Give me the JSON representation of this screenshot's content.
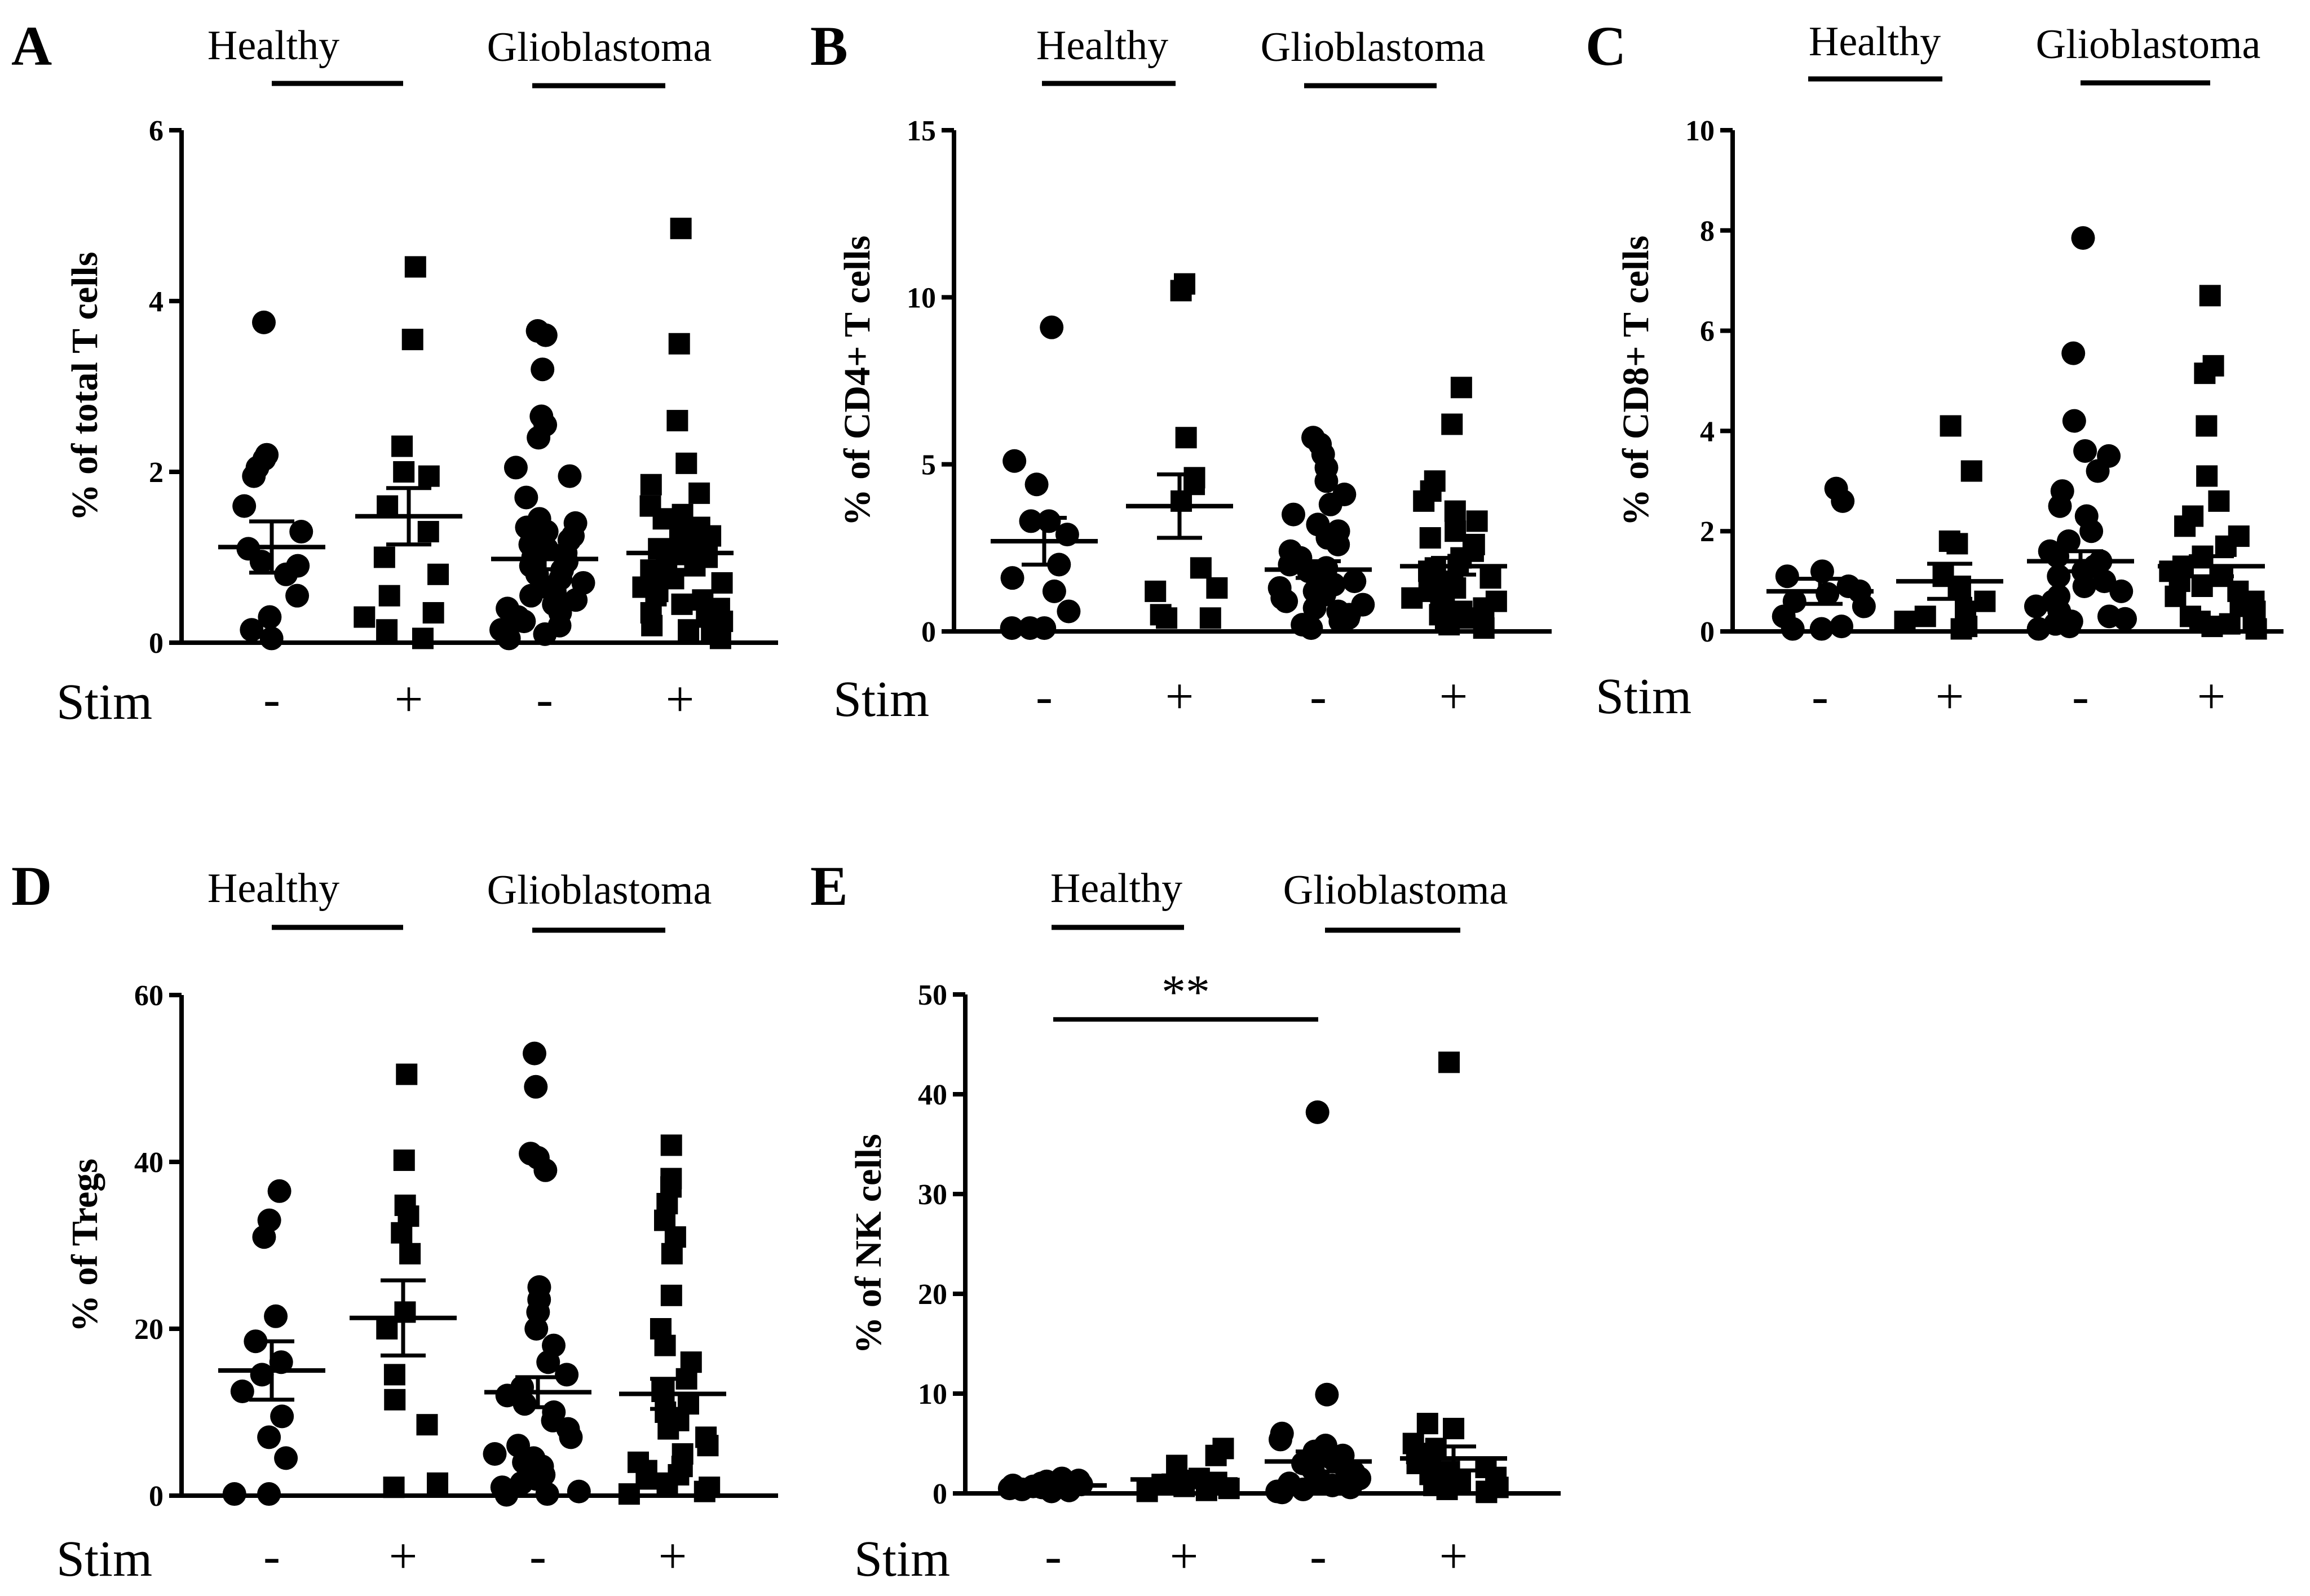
{
  "figure": {
    "stim_label": "Stim",
    "group_labels": [
      "Healthy",
      "Glioblastoma"
    ]
  },
  "chart_data": [
    {
      "panel": "A",
      "type": "scatter",
      "ylabel": "% of total T cells",
      "ylim": [
        0,
        6
      ],
      "yticks": [
        0,
        2,
        4,
        6
      ],
      "groups": [
        "Healthy",
        "Glioblastoma"
      ],
      "categories": [
        "-",
        "+",
        "-",
        "+"
      ],
      "significance": [],
      "series": [
        {
          "group": "Healthy",
          "stim": "-",
          "marker": "circle",
          "mean": 1.12,
          "sem": 0.3,
          "values": [
            3.75,
            2.2,
            2.15,
            2.05,
            1.95,
            1.6,
            1.3,
            1.1,
            0.95,
            0.9,
            0.8,
            0.55,
            0.3,
            0.15,
            0.05
          ]
        },
        {
          "group": "Healthy",
          "stim": "+",
          "marker": "square",
          "mean": 1.48,
          "sem": 0.33,
          "values": [
            4.4,
            3.55,
            2.3,
            2.0,
            1.95,
            1.6,
            1.3,
            1.0,
            0.8,
            0.55,
            0.35,
            0.3,
            0.15,
            0.05
          ]
        },
        {
          "group": "Glioblastoma",
          "stim": "-",
          "marker": "circle",
          "mean": 0.98,
          "sem": 0.12,
          "values": [
            3.65,
            3.6,
            3.2,
            2.65,
            2.55,
            2.4,
            2.05,
            1.95,
            1.7,
            1.45,
            1.4,
            1.35,
            1.3,
            1.25,
            1.2,
            1.15,
            1.1,
            1.05,
            1.0,
            0.95,
            0.9,
            0.85,
            0.8,
            0.75,
            0.7,
            0.65,
            0.6,
            0.55,
            0.5,
            0.45,
            0.4,
            0.35,
            0.3,
            0.25,
            0.2,
            0.15,
            0.1,
            0.05
          ]
        },
        {
          "group": "Glioblastoma",
          "stim": "+",
          "marker": "square",
          "mean": 1.05,
          "sem": 0.12,
          "values": [
            4.85,
            3.5,
            2.6,
            2.1,
            1.85,
            1.75,
            1.6,
            1.5,
            1.45,
            1.4,
            1.35,
            1.3,
            1.25,
            1.2,
            1.15,
            1.1,
            1.05,
            1.0,
            0.95,
            0.9,
            0.85,
            0.8,
            0.75,
            0.7,
            0.65,
            0.6,
            0.55,
            0.5,
            0.45,
            0.4,
            0.35,
            0.3,
            0.25,
            0.2,
            0.15,
            0.1,
            0.05
          ]
        }
      ]
    },
    {
      "panel": "B",
      "type": "scatter",
      "ylabel": "% of CD4+ T cells",
      "ylim": [
        0,
        15
      ],
      "yticks": [
        0,
        5,
        10,
        15
      ],
      "groups": [
        "Healthy",
        "Glioblastoma"
      ],
      "categories": [
        "-",
        "+",
        "-",
        "+"
      ],
      "significance": [],
      "series": [
        {
          "group": "Healthy",
          "stim": "-",
          "marker": "circle",
          "mean": 2.7,
          "sem": 0.7,
          "values": [
            9.1,
            5.1,
            4.4,
            3.3,
            3.3,
            2.9,
            2.0,
            1.6,
            1.2,
            0.6,
            0.1,
            0.1,
            0.1
          ]
        },
        {
          "group": "Healthy",
          "stim": "+",
          "marker": "square",
          "mean": 3.75,
          "sem": 0.95,
          "values": [
            10.4,
            10.2,
            5.8,
            4.6,
            4.4,
            3.9,
            1.9,
            1.3,
            1.2,
            0.5,
            0.4,
            0.4
          ]
        },
        {
          "group": "Glioblastoma",
          "stim": "-",
          "marker": "circle",
          "mean": 1.85,
          "sem": 0.25,
          "values": [
            5.8,
            5.6,
            5.3,
            4.9,
            4.5,
            4.1,
            3.8,
            3.5,
            3.2,
            3.0,
            2.8,
            2.6,
            2.4,
            2.2,
            2.0,
            1.9,
            1.8,
            1.7,
            1.6,
            1.5,
            1.4,
            1.3,
            1.2,
            1.1,
            1.0,
            0.9,
            0.8,
            0.7,
            0.6,
            0.5,
            0.4,
            0.3,
            0.2,
            0.1
          ]
        },
        {
          "group": "Glioblastoma",
          "stim": "+",
          "marker": "square",
          "mean": 1.95,
          "sem": 0.25,
          "values": [
            7.3,
            6.2,
            4.5,
            4.2,
            3.9,
            3.6,
            3.3,
            3.0,
            2.8,
            2.6,
            2.4,
            2.2,
            2.0,
            1.9,
            1.8,
            1.7,
            1.6,
            1.5,
            1.4,
            1.3,
            1.2,
            1.1,
            1.0,
            0.9,
            0.8,
            0.7,
            0.6,
            0.5,
            0.4,
            0.3,
            0.2,
            0.1
          ]
        }
      ]
    },
    {
      "panel": "C",
      "type": "scatter",
      "ylabel": "% of CD8+ T cells",
      "ylim": [
        0,
        10
      ],
      "yticks": [
        0,
        2,
        4,
        6,
        8,
        10
      ],
      "groups": [
        "Healthy",
        "Glioblastoma"
      ],
      "categories": [
        "-",
        "+",
        "-",
        "+"
      ],
      "significance": [],
      "series": [
        {
          "group": "Healthy",
          "stim": "-",
          "marker": "circle",
          "mean": 0.8,
          "sem": 0.25,
          "values": [
            2.85,
            2.6,
            1.2,
            1.1,
            0.9,
            0.8,
            0.75,
            0.6,
            0.5,
            0.3,
            0.1,
            0.05,
            0.05
          ]
        },
        {
          "group": "Healthy",
          "stim": "+",
          "marker": "square",
          "mean": 1.0,
          "sem": 0.35,
          "values": [
            4.1,
            3.2,
            1.8,
            1.75,
            1.1,
            0.9,
            0.6,
            0.4,
            0.3,
            0.2,
            0.1,
            0.05
          ]
        },
        {
          "group": "Glioblastoma",
          "stim": "-",
          "marker": "circle",
          "mean": 1.4,
          "sem": 0.2,
          "values": [
            7.85,
            5.55,
            4.2,
            3.6,
            3.5,
            3.2,
            2.8,
            2.5,
            2.3,
            2.0,
            1.8,
            1.6,
            1.5,
            1.4,
            1.3,
            1.2,
            1.1,
            1.0,
            0.9,
            0.8,
            0.7,
            0.6,
            0.5,
            0.4,
            0.3,
            0.25,
            0.2,
            0.15,
            0.1,
            0.05
          ]
        },
        {
          "group": "Glioblastoma",
          "stim": "+",
          "marker": "square",
          "mean": 1.3,
          "sem": 0.2,
          "values": [
            6.7,
            5.3,
            5.15,
            4.1,
            3.1,
            2.6,
            2.3,
            2.1,
            1.9,
            1.7,
            1.5,
            1.3,
            1.2,
            1.1,
            1.0,
            0.9,
            0.8,
            0.7,
            0.6,
            0.5,
            0.4,
            0.3,
            0.25,
            0.2,
            0.15,
            0.1,
            0.05
          ]
        }
      ]
    },
    {
      "panel": "D",
      "type": "scatter",
      "ylabel": "% of Tregs",
      "ylim": [
        0,
        60
      ],
      "yticks": [
        0,
        20,
        40,
        60
      ],
      "groups": [
        "Healthy",
        "Glioblastoma"
      ],
      "categories": [
        "-",
        "+",
        "-",
        "+"
      ],
      "significance": [],
      "series": [
        {
          "group": "Healthy",
          "stim": "-",
          "marker": "circle",
          "mean": 15.0,
          "sem": 3.5,
          "values": [
            36.5,
            33.0,
            31.0,
            21.5,
            18.5,
            16.0,
            14.5,
            12.5,
            9.5,
            7.0,
            4.5,
            0.2,
            0.2
          ]
        },
        {
          "group": "Healthy",
          "stim": "+",
          "marker": "square",
          "mean": 21.3,
          "sem": 4.5,
          "values": [
            50.5,
            40.2,
            34.8,
            33.5,
            31.5,
            29.0,
            22.0,
            20.0,
            14.5,
            11.5,
            8.5,
            1.5,
            1.0
          ]
        },
        {
          "group": "Glioblastoma",
          "stim": "-",
          "marker": "circle",
          "mean": 12.4,
          "sem": 1.8,
          "values": [
            53.0,
            49.0,
            41.0,
            40.5,
            39.0,
            25.0,
            23.5,
            22.0,
            20.0,
            18.0,
            16.0,
            14.5,
            13.0,
            12.0,
            11.0,
            10.0,
            9.0,
            8.0,
            7.0,
            6.0,
            5.0,
            4.5,
            4.0,
            3.5,
            3.0,
            2.5,
            2.0,
            1.5,
            1.0,
            0.5,
            0.2,
            0.1
          ]
        },
        {
          "group": "Glioblastoma",
          "stim": "+",
          "marker": "square",
          "mean": 12.2,
          "sem": 1.8,
          "values": [
            42.0,
            38.0,
            37.0,
            35.0,
            33.0,
            31.0,
            29.0,
            24.0,
            20.0,
            18.0,
            16.0,
            14.0,
            12.5,
            11.0,
            10.0,
            9.0,
            8.0,
            7.0,
            6.0,
            5.0,
            4.0,
            3.5,
            3.0,
            2.5,
            2.0,
            1.5,
            1.0,
            0.5,
            0.2
          ]
        }
      ]
    },
    {
      "panel": "E",
      "type": "scatter",
      "ylabel": "% of NK cells",
      "ylim": [
        0,
        50
      ],
      "yticks": [
        0,
        10,
        20,
        30,
        40,
        50
      ],
      "groups": [
        "Healthy",
        "Glioblastoma"
      ],
      "categories": [
        "-",
        "+",
        "-",
        "+"
      ],
      "significance": [
        {
          "from": 0,
          "to": 2,
          "label": "**"
        }
      ],
      "series": [
        {
          "group": "Healthy",
          "stim": "-",
          "marker": "circle",
          "mean": 0.8,
          "sem": 0.1,
          "values": [
            1.5,
            1.3,
            1.2,
            1.0,
            0.9,
            0.8,
            0.7,
            0.6,
            0.5,
            0.4,
            0.3,
            0.2
          ]
        },
        {
          "group": "Healthy",
          "stim": "+",
          "marker": "square",
          "mean": 1.4,
          "sem": 0.4,
          "values": [
            4.5,
            3.8,
            2.8,
            1.5,
            1.3,
            1.1,
            0.9,
            0.7,
            0.5,
            0.3,
            0.2
          ]
        },
        {
          "group": "Glioblastoma",
          "stim": "-",
          "marker": "circle",
          "mean": 3.2,
          "sem": 1.0,
          "values": [
            38.2,
            9.9,
            6.0,
            5.4,
            4.8,
            4.2,
            3.8,
            3.4,
            3.0,
            2.7,
            2.4,
            2.1,
            1.8,
            1.5,
            1.2,
            1.0,
            0.8,
            0.6,
            0.4,
            0.2,
            0.1
          ]
        },
        {
          "group": "Glioblastoma",
          "stim": "+",
          "marker": "square",
          "mean": 3.5,
          "sem": 1.2,
          "values": [
            43.2,
            7.0,
            6.5,
            5.0,
            4.5,
            4.0,
            3.5,
            3.0,
            2.6,
            2.2,
            1.9,
            1.6,
            1.3,
            1.0,
            0.8,
            0.6,
            0.4,
            0.2,
            0.1
          ]
        }
      ]
    }
  ]
}
